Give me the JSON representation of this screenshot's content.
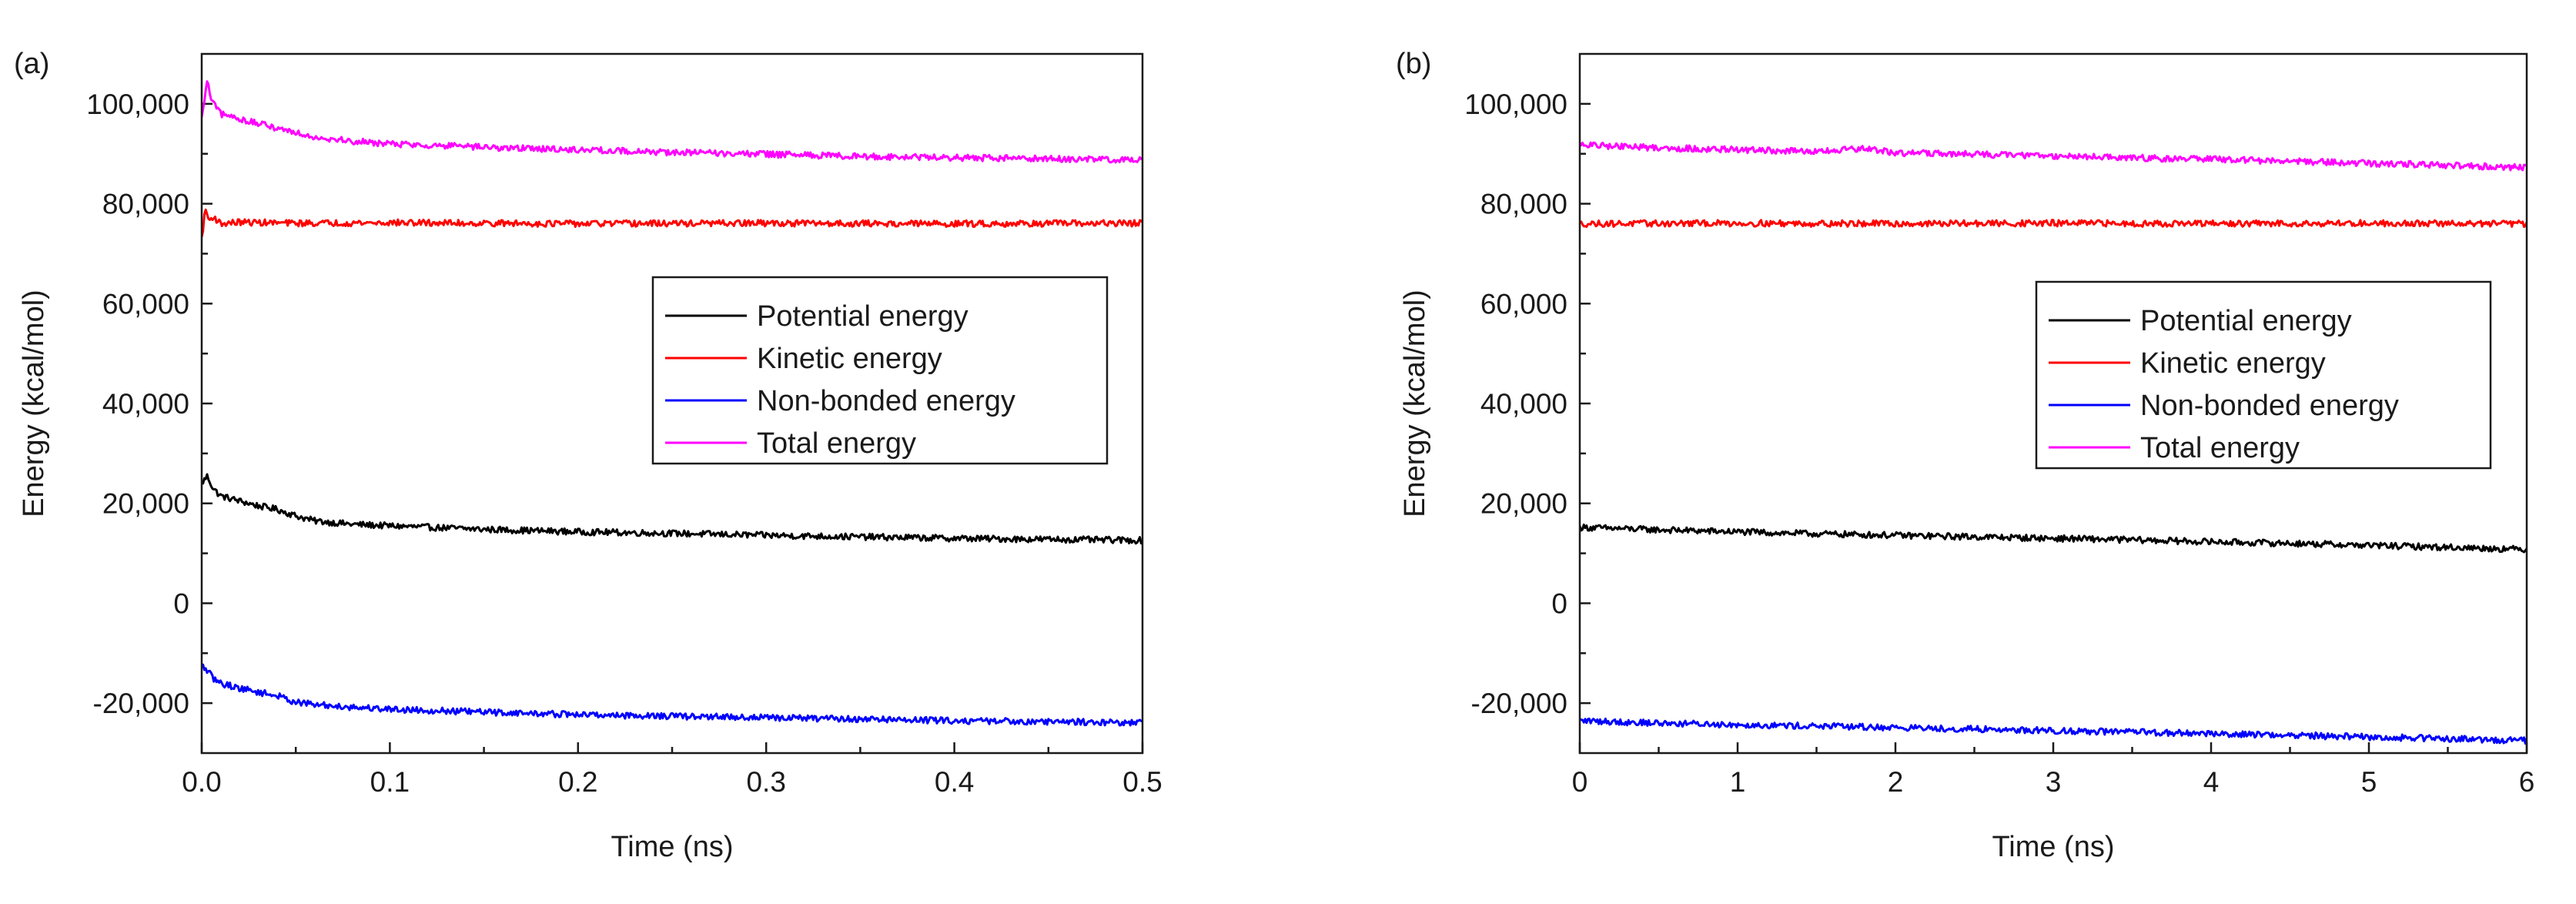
{
  "chart_data": [
    {
      "panel_label": "(a)",
      "type": "line",
      "xlabel": "Time (ns)",
      "ylabel": "Energy (kcal/mol)",
      "xlim": [
        0,
        0.5
      ],
      "ylim": [
        -30000,
        110000
      ],
      "xticks": [
        0.0,
        0.1,
        0.2,
        0.3,
        0.4,
        0.5
      ],
      "xtick_labels": [
        "0.0",
        "0.1",
        "0.2",
        "0.3",
        "0.4",
        "0.5"
      ],
      "yticks": [
        -20000,
        0,
        20000,
        40000,
        60000,
        80000,
        100000
      ],
      "ytick_labels": [
        "-20,000",
        "0",
        "20,000",
        "40,000",
        "60,000",
        "80,000",
        "100,000"
      ],
      "legend": "center-right",
      "series": [
        {
          "name": "Potential energy",
          "color": "#000000",
          "x": [
            0.0,
            0.003,
            0.006,
            0.01,
            0.02,
            0.03,
            0.04,
            0.05,
            0.06,
            0.08,
            0.1,
            0.15,
            0.2,
            0.25,
            0.3,
            0.35,
            0.4,
            0.45,
            0.5
          ],
          "y": [
            24000,
            25500,
            23000,
            21500,
            20500,
            19500,
            18800,
            17500,
            16500,
            15800,
            15500,
            14800,
            14300,
            14000,
            13600,
            13300,
            13000,
            12800,
            12600
          ]
        },
        {
          "name": "Kinetic energy",
          "color": "#ff0000",
          "x": [
            0.0,
            0.002,
            0.004,
            0.006,
            0.01,
            0.02,
            0.05,
            0.1,
            0.2,
            0.3,
            0.4,
            0.5
          ],
          "y": [
            73000,
            79000,
            76500,
            77500,
            76000,
            76300,
            76100,
            76200,
            76000,
            76100,
            76000,
            76100
          ]
        },
        {
          "name": "Non-bonded energy",
          "color": "#0000ff",
          "x": [
            0.0,
            0.003,
            0.006,
            0.01,
            0.02,
            0.03,
            0.04,
            0.05,
            0.06,
            0.08,
            0.1,
            0.15,
            0.2,
            0.25,
            0.3,
            0.35,
            0.4,
            0.45,
            0.5
          ],
          "y": [
            -12500,
            -13500,
            -15000,
            -16000,
            -17000,
            -17800,
            -18500,
            -19800,
            -20300,
            -20800,
            -21200,
            -21800,
            -22300,
            -22600,
            -22900,
            -23200,
            -23500,
            -23700,
            -23900
          ]
        },
        {
          "name": "Total energy",
          "color": "#ff00ff",
          "x": [
            0.0,
            0.003,
            0.005,
            0.008,
            0.01,
            0.02,
            0.03,
            0.04,
            0.05,
            0.06,
            0.08,
            0.1,
            0.15,
            0.2,
            0.25,
            0.3,
            0.35,
            0.4,
            0.45,
            0.5
          ],
          "y": [
            97000,
            104500,
            101000,
            99000,
            98000,
            97000,
            96000,
            95200,
            94300,
            93400,
            92500,
            92000,
            91300,
            90800,
            90300,
            89900,
            89500,
            89200,
            89000,
            88800
          ]
        }
      ]
    },
    {
      "panel_label": "(b)",
      "type": "line",
      "xlabel": "Time (ns)",
      "ylabel": "Energy (kcal/mol)",
      "xlim": [
        0,
        6
      ],
      "ylim": [
        -30000,
        110000
      ],
      "xticks": [
        0,
        1,
        2,
        3,
        4,
        5,
        6
      ],
      "xtick_labels": [
        "0",
        "1",
        "2",
        "3",
        "4",
        "5",
        "6"
      ],
      "yticks": [
        -20000,
        0,
        20000,
        40000,
        60000,
        80000,
        100000
      ],
      "ytick_labels": [
        "-20,000",
        "0",
        "20,000",
        "40,000",
        "60,000",
        "80,000",
        "100,000"
      ],
      "legend": "center-right",
      "series": [
        {
          "name": "Potential energy",
          "color": "#000000",
          "x": [
            0,
            0.5,
            1,
            1.5,
            2,
            2.5,
            3,
            3.5,
            4,
            4.5,
            5,
            5.5,
            6
          ],
          "y": [
            15200,
            14700,
            14300,
            13900,
            13600,
            13300,
            13000,
            12700,
            12300,
            12000,
            11600,
            11200,
            10800
          ]
        },
        {
          "name": "Kinetic energy",
          "color": "#ff0000",
          "x": [
            0,
            1,
            2,
            3,
            4,
            5,
            6
          ],
          "y": [
            76000,
            76100,
            76000,
            76100,
            76000,
            76100,
            76000
          ]
        },
        {
          "name": "Non-bonded energy",
          "color": "#0000ff",
          "x": [
            0,
            0.5,
            1,
            1.5,
            2,
            2.5,
            3,
            3.5,
            4,
            4.5,
            5,
            5.5,
            6
          ],
          "y": [
            -23500,
            -24000,
            -24300,
            -24600,
            -24900,
            -25200,
            -25500,
            -25800,
            -26100,
            -26400,
            -26800,
            -27100,
            -27500
          ]
        },
        {
          "name": "Total energy",
          "color": "#ff00ff",
          "x": [
            0,
            0.5,
            1,
            1.5,
            1.8,
            2,
            2.5,
            3,
            3.5,
            4,
            4.5,
            5,
            5.5,
            6
          ],
          "y": [
            91800,
            91200,
            90800,
            90400,
            91000,
            90200,
            89900,
            89600,
            89200,
            88900,
            88500,
            88100,
            87700,
            87200
          ]
        }
      ]
    }
  ]
}
